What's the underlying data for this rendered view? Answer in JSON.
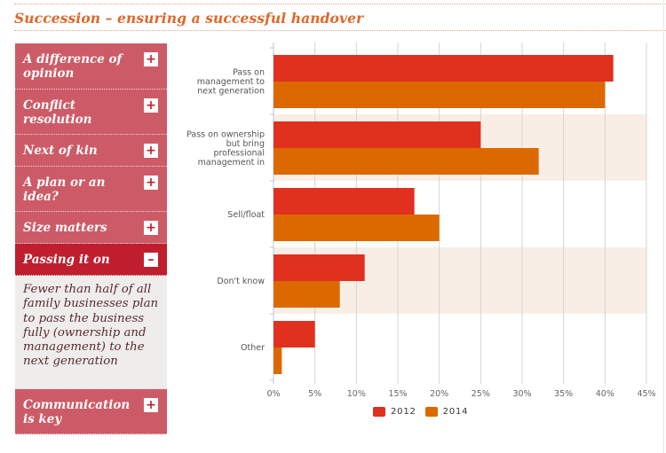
{
  "header": {
    "title": "Succession – ensuring a successful handover"
  },
  "sidebar": {
    "items": [
      {
        "label": "A difference of opinion",
        "toggle": "+",
        "expanded": false
      },
      {
        "label": "Conflict resolution",
        "toggle": "+",
        "expanded": false
      },
      {
        "label": "Next of kin",
        "toggle": "+",
        "expanded": false
      },
      {
        "label": "A plan or an idea?",
        "toggle": "+",
        "expanded": false
      },
      {
        "label": "Size matters",
        "toggle": "+",
        "expanded": false
      },
      {
        "label": "Passing it on",
        "toggle": "–",
        "expanded": true,
        "body": "Fewer than half of all family businesses plan to pass the business fully (ownership and management) to the next generation"
      },
      {
        "label": "Communication is key",
        "toggle": "+",
        "expanded": false
      }
    ]
  },
  "colors": {
    "series_2012": "#e0301e",
    "series_2014": "#dc6900",
    "band": "#f8eee6",
    "sidebar": "#cc5b67",
    "sidebar_active": "#bf1e2e",
    "title": "#e0672a"
  },
  "chart_data": {
    "type": "bar",
    "orientation": "horizontal",
    "title": "",
    "xlabel": "",
    "ylabel": "",
    "categories": [
      "Pass on management to next generation",
      "Pass on ownership but bring professional management in",
      "Sell/float",
      "Don't know",
      "Other"
    ],
    "category_lines": [
      [
        "Pass on",
        "management to",
        "next generation"
      ],
      [
        "Pass on ownership",
        "but bring",
        "professional",
        "management in"
      ],
      [
        "Sell/float"
      ],
      [
        "Don't know"
      ],
      [
        "Other"
      ]
    ],
    "series": [
      {
        "name": "2012",
        "values": [
          41,
          25,
          17,
          11,
          5
        ]
      },
      {
        "name": "2014",
        "values": [
          40,
          32,
          20,
          8,
          1
        ]
      }
    ],
    "xlim": [
      0,
      45
    ],
    "xticks": [
      0,
      5,
      10,
      15,
      20,
      25,
      30,
      35,
      40,
      45
    ],
    "xtick_labels": [
      "0%",
      "5%",
      "10%",
      "15%",
      "20%",
      "25%",
      "30%",
      "35%",
      "40%",
      "45%"
    ],
    "grid": true,
    "alternating_bands": true,
    "legend": {
      "position": "bottom",
      "entries": [
        "2012",
        "2014"
      ]
    }
  }
}
